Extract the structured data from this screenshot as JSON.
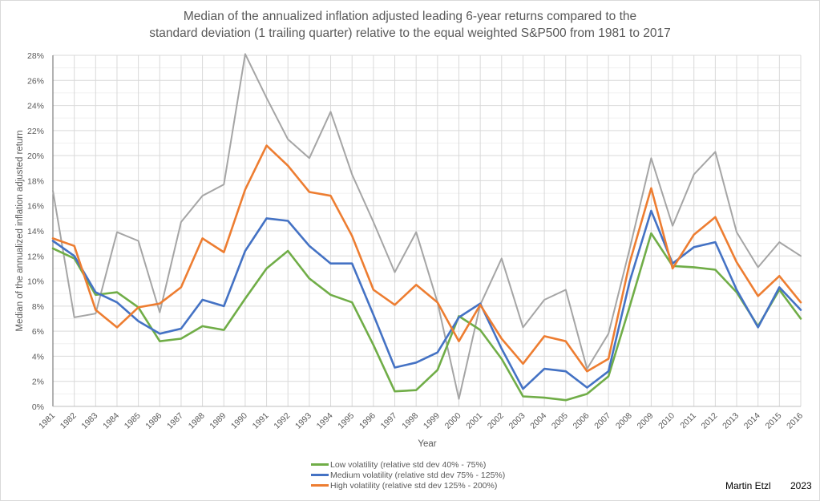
{
  "chart_data": {
    "type": "line",
    "title": [
      "Median of the annualized inflation adjusted leading 6-year returns compared to the",
      "standard deviation (1 trailing quarter) relative to the equal weighted S&P500 from 1981 to 2017"
    ],
    "xlabel": "Year",
    "ylabel": "Median of the annualized inflation adjusted return",
    "ylim": [
      0,
      28
    ],
    "y_ticks": [
      "0%",
      "2%",
      "4%",
      "6%",
      "8%",
      "10%",
      "12%",
      "14%",
      "16%",
      "18%",
      "20%",
      "22%",
      "24%",
      "26%",
      "28%"
    ],
    "y_tick_values": [
      0,
      2,
      4,
      6,
      8,
      10,
      12,
      14,
      16,
      18,
      20,
      22,
      24,
      26,
      28
    ],
    "grid": true,
    "legend_position": "bottom",
    "x": [
      "1981",
      "1982",
      "1983",
      "1984",
      "1985",
      "1986",
      "1987",
      "1988",
      "1989",
      "1990",
      "1991",
      "1992",
      "1993",
      "1994",
      "1995",
      "1996",
      "1997",
      "1998",
      "1999",
      "2000",
      "2001",
      "2002",
      "2003",
      "2004",
      "2005",
      "2006",
      "2007",
      "2008",
      "2009",
      "2010",
      "2011",
      "2012",
      "2013",
      "2014",
      "2015",
      "2016"
    ],
    "series": [
      {
        "name": "",
        "color": "#a5a5a5",
        "in_legend": false,
        "values": [
          17.2,
          7.1,
          7.4,
          13.9,
          13.2,
          7.5,
          14.7,
          16.8,
          17.7,
          28.1,
          24.6,
          21.3,
          19.8,
          23.5,
          18.5,
          14.7,
          10.7,
          13.9,
          8.3,
          0.6,
          8.1,
          11.8,
          6.3,
          8.5,
          9.3,
          3.0,
          5.8,
          12.6,
          19.8,
          14.4,
          18.5,
          20.3,
          13.9,
          11.1,
          13.1,
          12.0
        ]
      },
      {
        "name": "Low volatility (relative std dev 40% - 75%)",
        "color": "#70ad47",
        "in_legend": true,
        "values": [
          12.6,
          11.8,
          8.9,
          9.1,
          7.9,
          5.2,
          5.4,
          6.4,
          6.1,
          8.6,
          11.0,
          12.4,
          10.2,
          8.9,
          8.3,
          4.9,
          1.2,
          1.3,
          2.9,
          7.2,
          6.1,
          3.8,
          0.8,
          0.7,
          0.5,
          1.0,
          2.4,
          8.0,
          13.8,
          11.2,
          11.1,
          10.9,
          9.1,
          6.4,
          9.3,
          7.0
        ]
      },
      {
        "name": "Medium volatility (relative std dev 75% - 125%)",
        "color": "#4472c4",
        "in_legend": true,
        "values": [
          13.2,
          12.0,
          9.1,
          8.3,
          6.8,
          5.8,
          6.2,
          8.5,
          8.0,
          12.4,
          15.0,
          14.8,
          12.8,
          11.4,
          11.4,
          7.3,
          3.1,
          3.5,
          4.3,
          7.1,
          8.2,
          4.6,
          1.4,
          3.0,
          2.8,
          1.5,
          2.8,
          10.0,
          15.6,
          11.4,
          12.7,
          13.1,
          9.3,
          6.3,
          9.5,
          7.7
        ]
      },
      {
        "name": "High volatility (relative std dev 125% - 200%)",
        "color": "#ed7d31",
        "in_legend": true,
        "values": [
          13.4,
          12.8,
          7.7,
          6.3,
          7.9,
          8.2,
          9.5,
          13.4,
          12.3,
          17.3,
          20.8,
          19.2,
          17.1,
          16.8,
          13.6,
          9.3,
          8.1,
          9.7,
          8.3,
          5.2,
          8.1,
          5.4,
          3.4,
          5.6,
          5.2,
          2.8,
          3.8,
          11.5,
          17.4,
          11.0,
          13.7,
          15.1,
          11.5,
          8.8,
          10.4,
          8.3
        ]
      }
    ]
  },
  "legend": [
    {
      "label": "Low volatility (relative std dev 40% - 75%)",
      "color": "#70ad47"
    },
    {
      "label": "Medium volatility (relative std dev 75% - 125%)",
      "color": "#4472c4"
    },
    {
      "label": "High volatility (relative std dev 125% - 200%)",
      "color": "#ed7d31"
    }
  ],
  "footer": {
    "author": "Martin Etzl",
    "year": "2023"
  }
}
